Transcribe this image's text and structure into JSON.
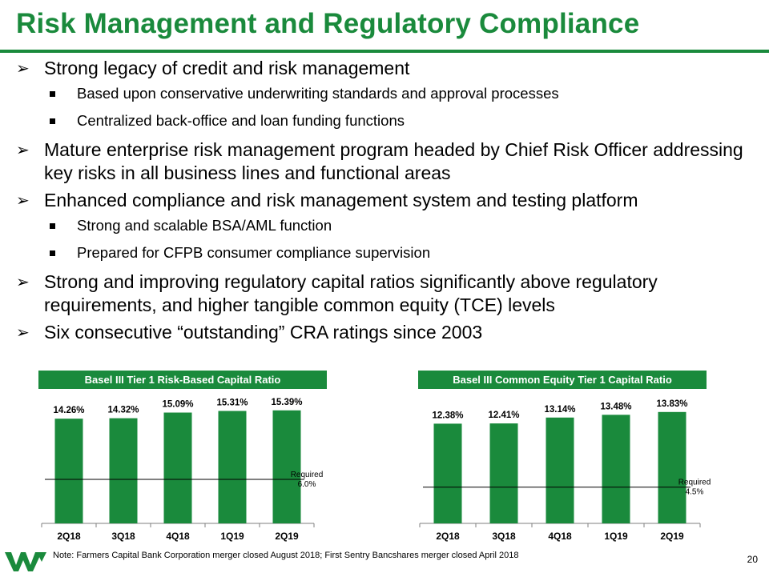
{
  "page": {
    "title": "Risk Management and Regulatory Compliance",
    "footnote": "Note: Farmers Capital Bank Corporation merger closed August 2018; First Sentry Bancshares merger closed April 2018",
    "page_number": "20"
  },
  "bullets": [
    {
      "text": "Strong legacy of credit and risk management",
      "sub": [
        "Based upon conservative underwriting standards and approval processes",
        "Centralized back-office and loan funding functions"
      ]
    },
    {
      "text": "Mature enterprise risk management program headed by Chief Risk Officer addressing key risks in all business lines and functional areas",
      "sub": []
    },
    {
      "text": "Enhanced compliance and risk management system and testing platform",
      "sub": [
        "Strong and scalable BSA/AML function",
        "Prepared for CFPB consumer compliance supervision"
      ]
    },
    {
      "text": "Strong and improving regulatory capital ratios significantly above regulatory requirements, and higher tangible common equity (TCE) levels",
      "sub": []
    },
    {
      "text": "Six consecutive “outstanding” CRA ratings since 2003",
      "sub": []
    }
  ],
  "colors": {
    "brand_green": "#1a8a3c"
  },
  "chart_data": [
    {
      "type": "bar",
      "title": "Basel III Tier 1 Risk-Based Capital Ratio",
      "categories": [
        "2Q18",
        "3Q18",
        "4Q18",
        "1Q19",
        "2Q19"
      ],
      "values": [
        14.26,
        14.32,
        15.09,
        15.31,
        15.39
      ],
      "value_labels": [
        "14.26%",
        "14.32%",
        "15.09%",
        "15.31%",
        "15.39%"
      ],
      "required_value": 6.0,
      "required_label": [
        "Required",
        "6.0%"
      ],
      "ylim": [
        0,
        17
      ],
      "bar_color": "#1a8a3c"
    },
    {
      "type": "bar",
      "title": "Basel III Common Equity Tier 1 Capital Ratio",
      "categories": [
        "2Q18",
        "3Q18",
        "4Q18",
        "1Q19",
        "2Q19"
      ],
      "values": [
        12.38,
        12.41,
        13.14,
        13.48,
        13.83
      ],
      "value_labels": [
        "12.38%",
        "12.41%",
        "13.14%",
        "13.48%",
        "13.83%"
      ],
      "required_value": 4.5,
      "required_label": [
        "Required",
        "4.5%"
      ],
      "ylim": [
        0,
        15.5
      ],
      "bar_color": "#1a8a3c"
    }
  ]
}
